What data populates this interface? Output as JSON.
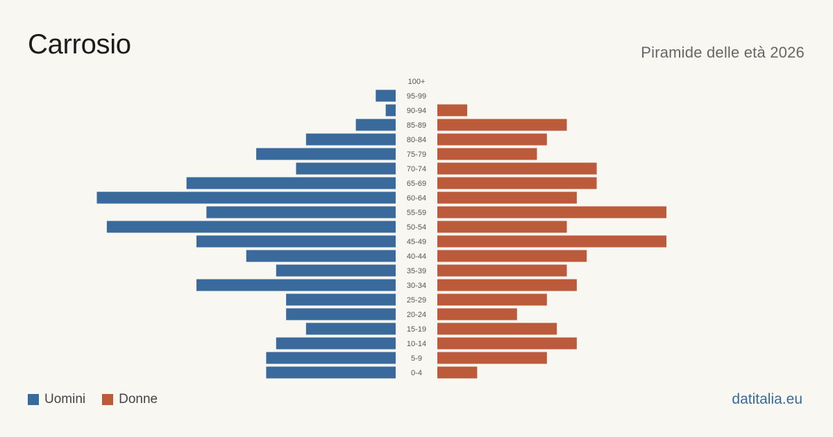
{
  "header": {
    "title": "Carrosio",
    "subtitle": "Piramide delle età 2026"
  },
  "legend": {
    "men_label": "Uomini",
    "women_label": "Donne"
  },
  "footer": {
    "brand": "datitalia.eu"
  },
  "colors": {
    "men": "#3a6a9b",
    "women": "#bb5b3c",
    "background": "#f9f7f2"
  },
  "chart_data": {
    "type": "bar",
    "orientation": "horizontal-pyramid",
    "title": "Piramide delle età 2026",
    "categories": [
      "100+",
      "95-99",
      "90-94",
      "85-89",
      "80-84",
      "75-79",
      "70-74",
      "65-69",
      "60-64",
      "55-59",
      "50-54",
      "45-49",
      "40-44",
      "35-39",
      "30-34",
      "25-29",
      "20-24",
      "15-19",
      "10-14",
      "5-9",
      "0-4"
    ],
    "series": [
      {
        "name": "Uomini",
        "values": [
          0,
          2,
          1,
          4,
          9,
          14,
          10,
          21,
          30,
          19,
          29,
          20,
          15,
          12,
          20,
          11,
          11,
          9,
          12,
          13,
          13
        ]
      },
      {
        "name": "Donne",
        "values": [
          0,
          0,
          3,
          13,
          11,
          10,
          16,
          16,
          14,
          23,
          13,
          23,
          15,
          13,
          14,
          11,
          8,
          12,
          14,
          11,
          4
        ]
      }
    ],
    "legend_position": "bottom-left",
    "grid": false
  }
}
